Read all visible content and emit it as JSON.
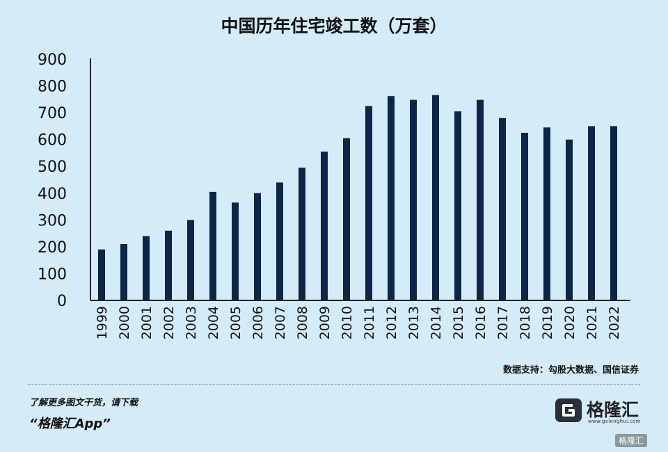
{
  "chart_data": {
    "type": "bar",
    "title": "中国历年住宅竣工数（万套）",
    "categories": [
      "1999",
      "2000",
      "2001",
      "2002",
      "2003",
      "2004",
      "2005",
      "2006",
      "2007",
      "2008",
      "2009",
      "2010",
      "2011",
      "2012",
      "2013",
      "2014",
      "2015",
      "2016",
      "2017",
      "2018",
      "2019",
      "2020",
      "2021",
      "2022"
    ],
    "values": [
      190,
      210,
      240,
      260,
      300,
      405,
      365,
      400,
      440,
      495,
      555,
      605,
      725,
      762,
      748,
      766,
      705,
      748,
      680,
      625,
      645,
      600,
      650,
      650
    ],
    "yticks": [
      0,
      100,
      200,
      300,
      400,
      500,
      600,
      700,
      800,
      900
    ],
    "ylim": [
      0,
      900
    ],
    "xlabel": "",
    "ylabel": "",
    "grid": false,
    "bar_color": "#0d2548"
  },
  "source_note": "数据支持：勾股大数据、国信证券",
  "promo": {
    "line1": "了解更多图文干货，请下载",
    "line2": "“格隆汇App”"
  },
  "brand": {
    "name": "格隆汇",
    "url": "www.gelonghui.com",
    "logo_icon": "gelonghui-logo-icon"
  },
  "corner_mark": "格隆汇"
}
